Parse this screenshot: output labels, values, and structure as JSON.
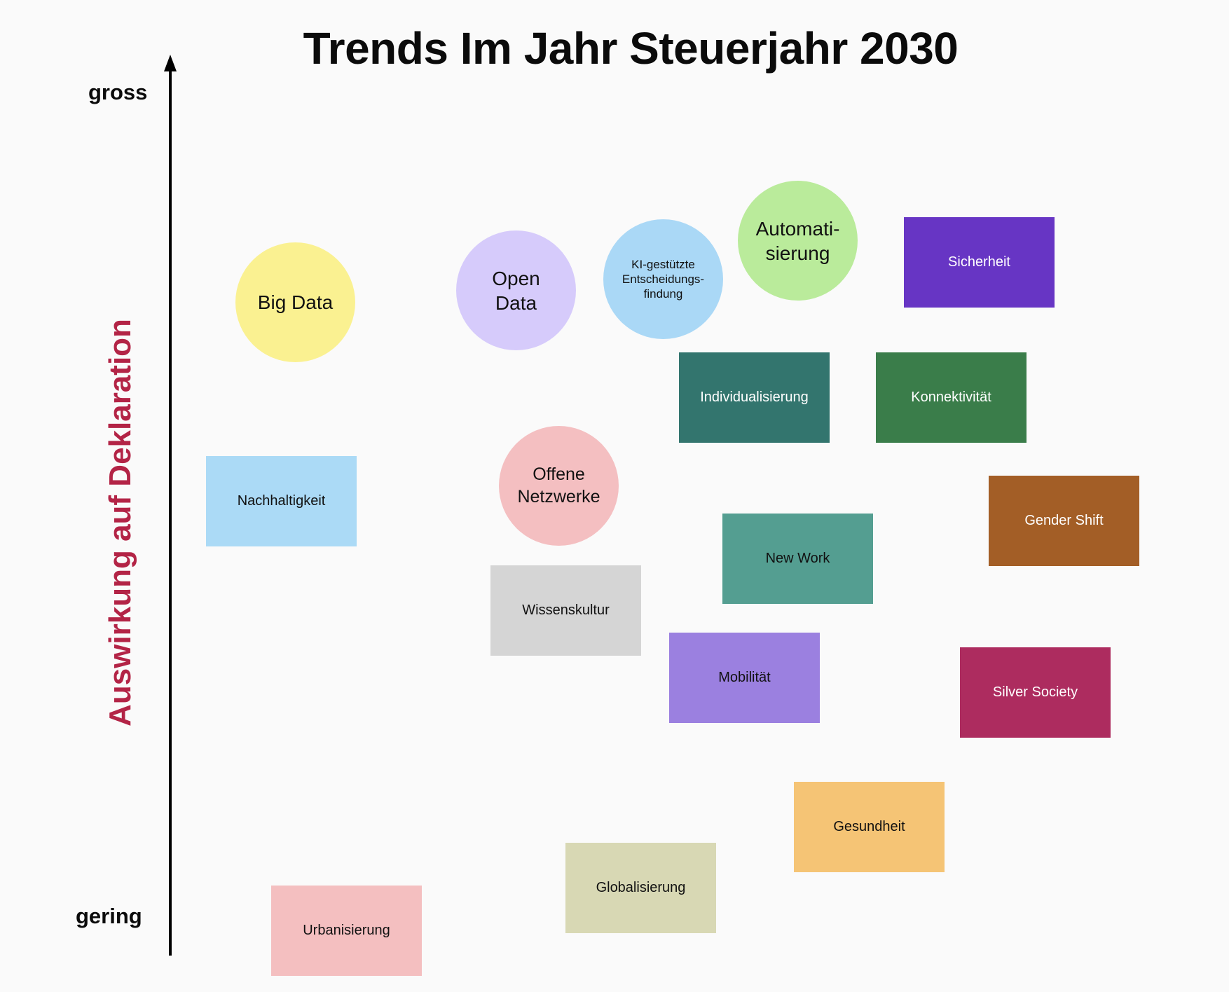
{
  "title": "Trends Im Jahr Steuerjahr 2030",
  "axis": {
    "top_label": "gross",
    "bottom_label": "gering",
    "title": "Auswirkung auf Deklaration"
  },
  "colors": {
    "axis_title": "#b32446",
    "axis_line": "#000000"
  },
  "trends": [
    {
      "id": "big-data",
      "label": "Big Data",
      "shape": "circle",
      "color": "#faf191",
      "text_color": "#111111"
    },
    {
      "id": "open-data",
      "label": "Open\nData",
      "shape": "circle",
      "color": "#d6cbfb",
      "text_color": "#111111"
    },
    {
      "id": "ki-entscheidung",
      "label": "KI-gestützte\nEntscheidungs-\nfindung",
      "shape": "circle",
      "color": "#aad8f6",
      "text_color": "#111111"
    },
    {
      "id": "automatisierung",
      "label": "Automati-\nsierung",
      "shape": "circle",
      "color": "#baeb9b",
      "text_color": "#111111"
    },
    {
      "id": "sicherheit",
      "label": "Sicherheit",
      "shape": "box",
      "color": "#6735c4",
      "text_color": "#ffffff"
    },
    {
      "id": "individualisierung",
      "label": "Individualisierung",
      "shape": "box",
      "color": "#33756e",
      "text_color": "#ffffff"
    },
    {
      "id": "konnektivitaet",
      "label": "Konnektivität",
      "shape": "box",
      "color": "#3a7d4a",
      "text_color": "#ffffff"
    },
    {
      "id": "nachhaltigkeit",
      "label": "Nachhaltigkeit",
      "shape": "box",
      "color": "#abdaf6",
      "text_color": "#111111"
    },
    {
      "id": "offene-netzwerke",
      "label": "Offene\nNetzwerke",
      "shape": "circle",
      "color": "#f4bfc1",
      "text_color": "#111111"
    },
    {
      "id": "gender-shift",
      "label": "Gender Shift",
      "shape": "box",
      "color": "#a35e26",
      "text_color": "#ffffff"
    },
    {
      "id": "new-work",
      "label": "New Work",
      "shape": "box",
      "color": "#549e91",
      "text_color": "#111111"
    },
    {
      "id": "wissenskultur",
      "label": "Wissenskultur",
      "shape": "box",
      "color": "#d5d5d5",
      "text_color": "#111111"
    },
    {
      "id": "mobilitaet",
      "label": "Mobilität",
      "shape": "box",
      "color": "#9b80e0",
      "text_color": "#111111"
    },
    {
      "id": "silver-society",
      "label": "Silver Society",
      "shape": "box",
      "color": "#ad2c5f",
      "text_color": "#ffffff"
    },
    {
      "id": "gesundheit",
      "label": "Gesundheit",
      "shape": "box",
      "color": "#f5c475",
      "text_color": "#111111"
    },
    {
      "id": "globalisierung",
      "label": "Globalisierung",
      "shape": "box",
      "color": "#d8d8b4",
      "text_color": "#111111"
    },
    {
      "id": "urbanisierung",
      "label": "Urbanisierung",
      "shape": "box",
      "color": "#f4bfc0",
      "text_color": "#111111"
    }
  ]
}
